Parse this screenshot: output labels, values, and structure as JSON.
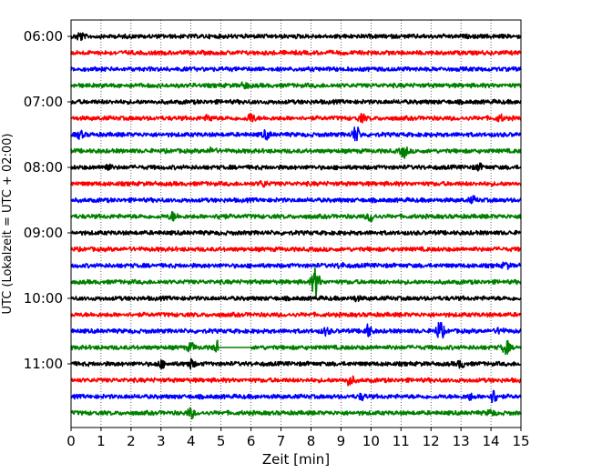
{
  "chart_data": {
    "type": "line",
    "title": "",
    "xlabel": "Zeit  [min]",
    "ylabel": "UTC (Lokalzeit = UTC + 02:00)",
    "xlim": [
      0,
      15
    ],
    "x_ticks": [
      0,
      1,
      2,
      3,
      4,
      5,
      6,
      7,
      8,
      9,
      10,
      11,
      12,
      13,
      14,
      15
    ],
    "x_tick_labels": [
      "0",
      "1",
      "2",
      "3",
      "4",
      "5",
      "6",
      "7",
      "8",
      "9",
      "10",
      "11",
      "12",
      "13",
      "14",
      "15"
    ],
    "grid": "vertical dotted lines at each minute",
    "traces_per_hour": 4,
    "y_tick_labels": [
      "06:00",
      "07:00",
      "08:00",
      "09:00",
      "10:00",
      "11:00"
    ],
    "trace_colors": [
      "#000000",
      "#ff0000",
      "#0000ff",
      "#008000"
    ],
    "traces": [
      {
        "start": "06:00",
        "color": "#000000",
        "events": [
          {
            "t": 0.3,
            "amp": 0.6
          }
        ]
      },
      {
        "start": "06:15",
        "color": "#ff0000",
        "events": []
      },
      {
        "start": "06:30",
        "color": "#0000ff",
        "events": []
      },
      {
        "start": "06:45",
        "color": "#008000",
        "events": [
          {
            "t": 5.8,
            "amp": 0.4
          }
        ]
      },
      {
        "start": "07:00",
        "color": "#000000",
        "events": []
      },
      {
        "start": "07:15",
        "color": "#ff0000",
        "events": [
          {
            "t": 4.6,
            "amp": 0.4
          },
          {
            "t": 6.0,
            "amp": 0.7
          },
          {
            "t": 9.7,
            "amp": 0.5
          },
          {
            "t": 14.3,
            "amp": 0.4
          }
        ]
      },
      {
        "start": "07:30",
        "color": "#0000ff",
        "events": [
          {
            "t": 0.3,
            "amp": 0.5
          },
          {
            "t": 6.5,
            "amp": 0.6
          },
          {
            "t": 9.5,
            "amp": 1.2
          }
        ]
      },
      {
        "start": "07:45",
        "color": "#008000",
        "events": [
          {
            "t": 4.7,
            "amp": 0.4
          },
          {
            "t": 11.1,
            "amp": 0.9
          }
        ]
      },
      {
        "start": "08:00",
        "color": "#000000",
        "events": [
          {
            "t": 1.2,
            "amp": 0.5
          },
          {
            "t": 13.6,
            "amp": 0.4
          }
        ]
      },
      {
        "start": "08:15",
        "color": "#ff0000",
        "events": [
          {
            "t": 6.4,
            "amp": 0.4
          }
        ]
      },
      {
        "start": "08:30",
        "color": "#0000ff",
        "events": [
          {
            "t": 13.4,
            "amp": 0.4
          }
        ]
      },
      {
        "start": "08:45",
        "color": "#008000",
        "events": [
          {
            "t": 3.4,
            "amp": 0.6
          },
          {
            "t": 5.0,
            "amp": 0.4
          },
          {
            "t": 10.0,
            "amp": 0.7
          }
        ]
      },
      {
        "start": "09:00",
        "color": "#000000",
        "events": []
      },
      {
        "start": "09:15",
        "color": "#ff0000",
        "events": []
      },
      {
        "start": "09:30",
        "color": "#0000ff",
        "events": [
          {
            "t": 9.0,
            "amp": 0.3
          },
          {
            "t": 14.5,
            "amp": 0.4
          }
        ]
      },
      {
        "start": "09:45",
        "color": "#008000",
        "events": [
          {
            "t": 8.15,
            "amp": 2.4
          }
        ]
      },
      {
        "start": "10:00",
        "color": "#000000",
        "events": [
          {
            "t": 9.5,
            "amp": 0.3
          }
        ]
      },
      {
        "start": "10:15",
        "color": "#ff0000",
        "events": []
      },
      {
        "start": "10:30",
        "color": "#0000ff",
        "events": [
          {
            "t": 8.5,
            "amp": 0.5
          },
          {
            "t": 9.9,
            "amp": 0.9
          },
          {
            "t": 12.3,
            "amp": 1.5
          },
          {
            "t": 14.3,
            "amp": 0.4
          }
        ]
      },
      {
        "start": "10:45",
        "color": "#008000",
        "events": [
          {
            "t": 4.0,
            "amp": 0.6
          },
          {
            "t": 4.9,
            "amp": 0.9
          },
          {
            "t": 14.5,
            "amp": 1.0
          }
        ],
        "gap": [
          4.9,
          6.0
        ]
      },
      {
        "start": "11:00",
        "color": "#000000",
        "events": [
          {
            "t": 3.0,
            "amp": 0.5
          },
          {
            "t": 4.0,
            "amp": 0.6
          },
          {
            "t": 13.0,
            "amp": 0.5
          }
        ]
      },
      {
        "start": "11:15",
        "color": "#ff0000",
        "events": [
          {
            "t": 9.3,
            "amp": 0.8
          }
        ]
      },
      {
        "start": "11:30",
        "color": "#0000ff",
        "events": [
          {
            "t": 9.7,
            "amp": 0.4
          },
          {
            "t": 13.3,
            "amp": 0.4
          },
          {
            "t": 14.1,
            "amp": 1.0
          }
        ]
      },
      {
        "start": "11:45",
        "color": "#008000",
        "events": [
          {
            "t": 4.0,
            "amp": 0.7
          },
          {
            "t": 14.0,
            "amp": 0.4
          }
        ]
      }
    ]
  }
}
